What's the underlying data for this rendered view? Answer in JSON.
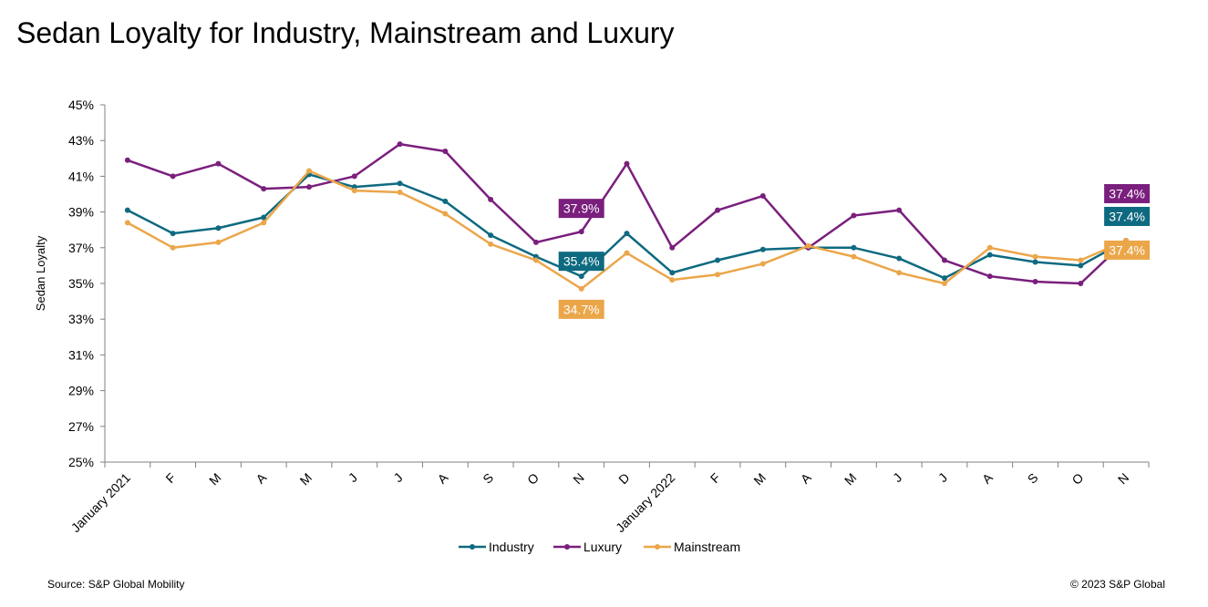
{
  "page": {
    "title": "Sedan Loyalty for Industry, Mainstream and Luxury",
    "source": "Source: S&P Global Mobility",
    "copyright": "© 2023 S&P Global"
  },
  "chart_data": {
    "type": "line",
    "title": "Sedan Loyalty for Industry, Mainstream and Luxury",
    "xlabel": "",
    "ylabel": "Sedan Loyalty",
    "ylim": [
      25,
      45
    ],
    "y_ticks": [
      "25%",
      "27%",
      "29%",
      "31%",
      "33%",
      "35%",
      "37%",
      "39%",
      "41%",
      "43%",
      "45%"
    ],
    "categories": [
      "January 2021",
      "F",
      "M",
      "A",
      "M",
      "J",
      "J",
      "A",
      "S",
      "O",
      "N",
      "D",
      "January 2022",
      "F",
      "M",
      "A",
      "M",
      "J",
      "J",
      "A",
      "S",
      "O",
      "N"
    ],
    "series": [
      {
        "name": "Industry",
        "color": "#0e6a80",
        "values": [
          39.1,
          37.8,
          38.1,
          38.7,
          41.1,
          40.4,
          40.6,
          39.6,
          37.7,
          36.5,
          35.4,
          37.8,
          35.6,
          36.3,
          36.9,
          37.0,
          37.0,
          36.4,
          35.3,
          36.6,
          36.2,
          36.0,
          37.4
        ]
      },
      {
        "name": "Luxury",
        "color": "#7a1f7d",
        "values": [
          41.9,
          41.0,
          41.7,
          40.3,
          40.4,
          41.0,
          42.8,
          42.4,
          39.7,
          37.3,
          37.9,
          41.7,
          37.0,
          39.1,
          39.9,
          37.0,
          38.8,
          39.1,
          36.3,
          35.4,
          35.1,
          35.0,
          37.4
        ]
      },
      {
        "name": "Mainstream",
        "color": "#eba64a",
        "values": [
          38.4,
          37.0,
          37.3,
          38.4,
          41.3,
          40.2,
          40.1,
          38.9,
          37.2,
          36.3,
          34.7,
          36.7,
          35.2,
          35.5,
          36.1,
          37.1,
          36.5,
          35.6,
          35.0,
          37.0,
          36.5,
          36.3,
          37.4
        ]
      }
    ],
    "annotations": [
      {
        "series": "Luxury",
        "index": 10,
        "text": "37.9%"
      },
      {
        "series": "Industry",
        "index": 10,
        "text": "35.4%"
      },
      {
        "series": "Mainstream",
        "index": 10,
        "text": "34.7%"
      },
      {
        "series": "Luxury",
        "index": 22,
        "text": "37.4%"
      },
      {
        "series": "Industry",
        "index": 22,
        "text": "37.4%"
      },
      {
        "series": "Mainstream",
        "index": 22,
        "text": "37.4%"
      }
    ],
    "grid": false,
    "legend": "bottom"
  }
}
